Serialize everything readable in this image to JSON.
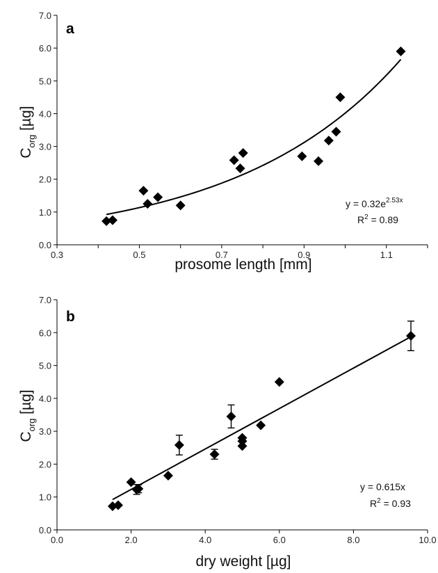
{
  "chart_data": [
    {
      "panel": "a",
      "type": "scatter",
      "xlabel": "prosome length [mm]",
      "ylabel_main": "C",
      "ylabel_sub": "org",
      "ylabel_unit": " [µg]",
      "xlim": [
        0.3,
        1.2
      ],
      "ylim": [
        0.0,
        7.0
      ],
      "xticks": [
        "0.3",
        "0.5",
        "0.7",
        "0.9",
        "1.1"
      ],
      "xtick_values": [
        0.3,
        0.5,
        0.7,
        0.9,
        1.1
      ],
      "yticks": [
        "0.0",
        "1.0",
        "2.0",
        "3.0",
        "4.0",
        "5.0",
        "6.0",
        "7.0"
      ],
      "ytick_values": [
        0,
        1,
        2,
        3,
        4,
        5,
        6,
        7
      ],
      "points": [
        {
          "x": 0.42,
          "y": 0.72
        },
        {
          "x": 0.435,
          "y": 0.75
        },
        {
          "x": 0.51,
          "y": 1.65
        },
        {
          "x": 0.52,
          "y": 1.25
        },
        {
          "x": 0.545,
          "y": 1.45
        },
        {
          "x": 0.6,
          "y": 1.2
        },
        {
          "x": 0.73,
          "y": 2.58
        },
        {
          "x": 0.745,
          "y": 2.33
        },
        {
          "x": 0.752,
          "y": 2.8
        },
        {
          "x": 0.895,
          "y": 2.7
        },
        {
          "x": 0.935,
          "y": 2.55
        },
        {
          "x": 0.96,
          "y": 3.18
        },
        {
          "x": 0.978,
          "y": 3.45
        },
        {
          "x": 0.988,
          "y": 4.5
        },
        {
          "x": 1.135,
          "y": 5.9
        }
      ],
      "fit": {
        "kind": "exponential",
        "a": 0.32,
        "b": 2.53,
        "x_range": [
          0.42,
          1.135
        ]
      },
      "equation_main": "y = 0.32e",
      "equation_sup": "2.53x",
      "r2_main": "R",
      "r2_sup": "2",
      "r2_rest": " = 0.89"
    },
    {
      "panel": "b",
      "type": "scatter",
      "xlabel": "dry weight [µg]",
      "ylabel_main": "C",
      "ylabel_sub": "org",
      "ylabel_unit": " [µg]",
      "xlim": [
        0.0,
        10.0
      ],
      "ylim": [
        0.0,
        7.0
      ],
      "xticks": [
        "0.0",
        "2.0",
        "4.0",
        "6.0",
        "8.0",
        "10.0"
      ],
      "xtick_values": [
        0,
        2,
        4,
        6,
        8,
        10
      ],
      "yticks": [
        "0.0",
        "1.0",
        "2.0",
        "3.0",
        "4.0",
        "5.0",
        "6.0",
        "7.0"
      ],
      "ytick_values": [
        0,
        1,
        2,
        3,
        4,
        5,
        6,
        7
      ],
      "points": [
        {
          "x": 1.5,
          "y": 0.72
        },
        {
          "x": 1.65,
          "y": 0.75
        },
        {
          "x": 2.0,
          "y": 1.45
        },
        {
          "x": 2.15,
          "y": 1.23,
          "err": 0.15
        },
        {
          "x": 2.2,
          "y": 1.25,
          "err": 0.12
        },
        {
          "x": 3.0,
          "y": 1.65
        },
        {
          "x": 3.3,
          "y": 2.58,
          "err": 0.3
        },
        {
          "x": 4.25,
          "y": 2.3,
          "err": 0.15
        },
        {
          "x": 4.7,
          "y": 3.45,
          "err": 0.35
        },
        {
          "x": 5.0,
          "y": 2.55
        },
        {
          "x": 5.0,
          "y": 2.7
        },
        {
          "x": 5.0,
          "y": 2.8
        },
        {
          "x": 5.5,
          "y": 3.18
        },
        {
          "x": 6.0,
          "y": 4.5
        },
        {
          "x": 9.55,
          "y": 5.9,
          "err": 0.45
        }
      ],
      "fit": {
        "kind": "linear",
        "slope": 0.615,
        "x_range": [
          1.5,
          9.55
        ]
      },
      "equation_main": "y = 0.615x",
      "equation_sup": "",
      "r2_main": "R",
      "r2_sup": "2",
      "r2_rest": " = 0.93"
    }
  ],
  "colors": {
    "marker": "#000000",
    "axis": "#000000",
    "text": "#111111"
  }
}
